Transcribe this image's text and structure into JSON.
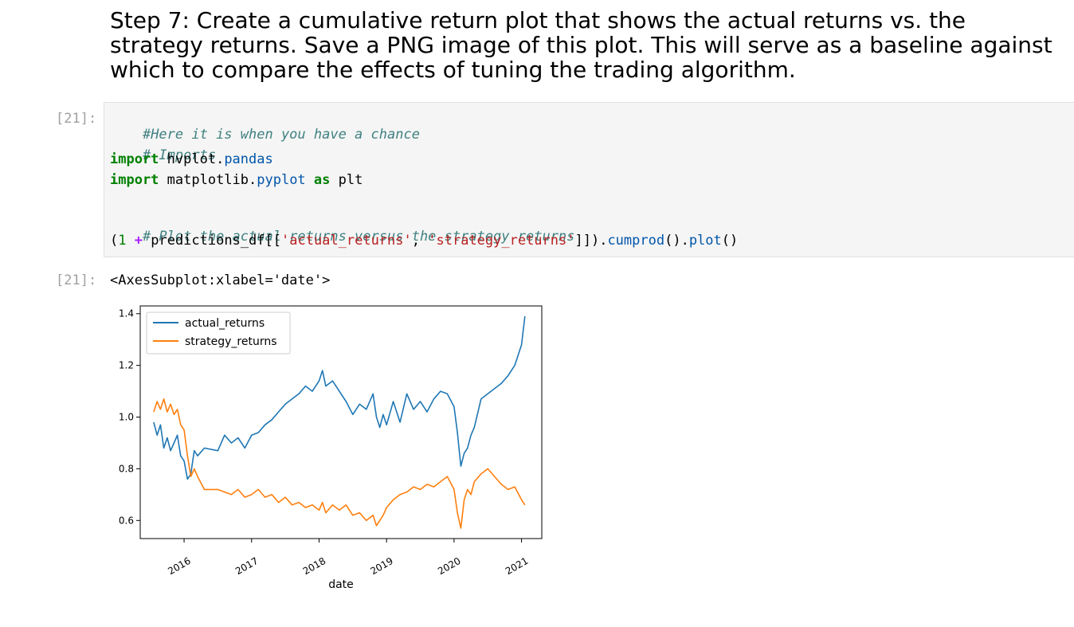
{
  "markdown": {
    "heading": "Step 7: Create a cumulative return plot that shows the actual returns vs. the strategy returns. Save a PNG image of this plot. This will serve as a baseline against which to compare the effects of tuning the trading algorithm."
  },
  "input_cell": {
    "prompt": "[21]:",
    "lines": {
      "l1_comment": "#Here it is when you have a chance",
      "l2_comment": "# Imports",
      "l3_kw": "import",
      "l3_a": " hvplot.",
      "l3_b": "pandas",
      "l4_kw": "import",
      "l4_a": " matplotlib.",
      "l4_b": "pyplot",
      "l4_c": " ",
      "l4_kw2": "as",
      "l4_d": " plt",
      "l6_comment": "# Plot the actual returns versus the strategy returns",
      "l7_a": "(",
      "l7_num": "1",
      "l7_b": " ",
      "l7_op": "+",
      "l7_c": " predictions_df[[",
      "l7_s1": "'actual_returns'",
      "l7_d": ", ",
      "l7_s2": "'strategy_returns'",
      "l7_e": "]]).",
      "l7_f": "cumprod",
      "l7_g": "().",
      "l7_h": "plot",
      "l7_i": "()"
    }
  },
  "output_cell": {
    "prompt": "[21]:",
    "text": "<AxesSubplot:xlabel='date'>"
  },
  "colors": {
    "actual": "#1f77b4",
    "strategy": "#ff7f0e"
  },
  "chart_data": {
    "type": "line",
    "title": "",
    "xlabel": "date",
    "ylabel": "",
    "xlim": [
      2015.35,
      2021.3
    ],
    "ylim": [
      0.53,
      1.43
    ],
    "yticks": [
      0.6,
      0.8,
      1.0,
      1.2,
      1.4
    ],
    "ytick_labels": [
      "0.6",
      "0.8",
      "1.0",
      "1.2",
      "1.4"
    ],
    "xticks": [
      2016,
      2017,
      2018,
      2019,
      2020,
      2021
    ],
    "xtick_labels": [
      "2016",
      "2017",
      "2018",
      "2019",
      "2020",
      "2021"
    ],
    "grid": false,
    "legend": "upper-left",
    "series": [
      {
        "name": "actual_returns",
        "x": [
          2015.55,
          2015.6,
          2015.65,
          2015.7,
          2015.75,
          2015.8,
          2015.85,
          2015.9,
          2015.95,
          2016.0,
          2016.05,
          2016.1,
          2016.15,
          2016.2,
          2016.3,
          2016.5,
          2016.6,
          2016.7,
          2016.8,
          2016.9,
          2017.0,
          2017.1,
          2017.2,
          2017.3,
          2017.4,
          2017.5,
          2017.6,
          2017.7,
          2017.8,
          2017.9,
          2018.0,
          2018.05,
          2018.1,
          2018.2,
          2018.3,
          2018.4,
          2018.5,
          2018.6,
          2018.7,
          2018.8,
          2018.85,
          2018.9,
          2018.95,
          2019.0,
          2019.1,
          2019.2,
          2019.3,
          2019.4,
          2019.5,
          2019.6,
          2019.7,
          2019.8,
          2019.9,
          2020.0,
          2020.05,
          2020.1,
          2020.15,
          2020.2,
          2020.25,
          2020.3,
          2020.4,
          2020.5,
          2020.6,
          2020.7,
          2020.8,
          2020.9,
          2021.0,
          2021.05
        ],
        "y": [
          0.98,
          0.93,
          0.97,
          0.88,
          0.92,
          0.87,
          0.9,
          0.93,
          0.85,
          0.83,
          0.76,
          0.78,
          0.87,
          0.85,
          0.88,
          0.87,
          0.93,
          0.9,
          0.92,
          0.88,
          0.93,
          0.94,
          0.97,
          0.99,
          1.02,
          1.05,
          1.07,
          1.09,
          1.12,
          1.1,
          1.14,
          1.18,
          1.12,
          1.14,
          1.1,
          1.06,
          1.01,
          1.05,
          1.03,
          1.09,
          1.0,
          0.96,
          1.01,
          0.97,
          1.06,
          0.98,
          1.09,
          1.03,
          1.06,
          1.02,
          1.07,
          1.1,
          1.09,
          1.04,
          0.94,
          0.81,
          0.86,
          0.88,
          0.93,
          0.96,
          1.07,
          1.09,
          1.11,
          1.13,
          1.16,
          1.2,
          1.28,
          1.39
        ]
      },
      {
        "name": "strategy_returns",
        "x": [
          2015.55,
          2015.6,
          2015.65,
          2015.7,
          2015.75,
          2015.8,
          2015.85,
          2015.9,
          2015.95,
          2016.0,
          2016.05,
          2016.1,
          2016.15,
          2016.2,
          2016.3,
          2016.5,
          2016.6,
          2016.7,
          2016.8,
          2016.9,
          2017.0,
          2017.1,
          2017.2,
          2017.3,
          2017.4,
          2017.5,
          2017.6,
          2017.7,
          2017.8,
          2017.9,
          2018.0,
          2018.05,
          2018.1,
          2018.2,
          2018.3,
          2018.4,
          2018.5,
          2018.6,
          2018.7,
          2018.8,
          2018.85,
          2018.9,
          2018.95,
          2019.0,
          2019.1,
          2019.2,
          2019.3,
          2019.4,
          2019.5,
          2019.6,
          2019.7,
          2019.8,
          2019.9,
          2020.0,
          2020.05,
          2020.1,
          2020.15,
          2020.2,
          2020.25,
          2020.3,
          2020.4,
          2020.5,
          2020.6,
          2020.7,
          2020.8,
          2020.9,
          2021.0,
          2021.05
        ],
        "y": [
          1.02,
          1.06,
          1.03,
          1.07,
          1.02,
          1.05,
          1.01,
          1.03,
          0.97,
          0.95,
          0.85,
          0.77,
          0.8,
          0.77,
          0.72,
          0.72,
          0.71,
          0.7,
          0.72,
          0.69,
          0.7,
          0.72,
          0.69,
          0.7,
          0.67,
          0.69,
          0.66,
          0.67,
          0.65,
          0.66,
          0.64,
          0.67,
          0.63,
          0.66,
          0.64,
          0.66,
          0.62,
          0.63,
          0.6,
          0.62,
          0.58,
          0.6,
          0.62,
          0.65,
          0.68,
          0.7,
          0.71,
          0.73,
          0.72,
          0.74,
          0.73,
          0.75,
          0.77,
          0.72,
          0.63,
          0.57,
          0.68,
          0.72,
          0.7,
          0.75,
          0.78,
          0.8,
          0.77,
          0.74,
          0.72,
          0.73,
          0.68,
          0.66
        ]
      }
    ]
  }
}
